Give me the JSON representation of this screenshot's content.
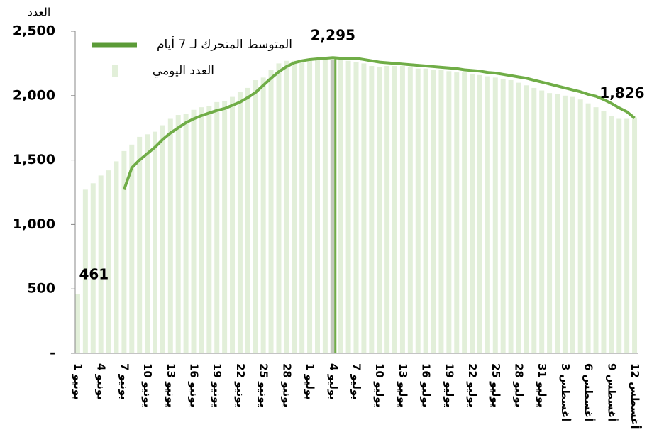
{
  "chart_data": {
    "type": "bar_line",
    "y_axis_label": "العدد",
    "categories": [
      "1 يونيو",
      null,
      null,
      "4 يونيو",
      null,
      null,
      "7 يونيو",
      null,
      null,
      "10 يونيو",
      null,
      null,
      "13 يونيو",
      null,
      null,
      "16 يونيو",
      null,
      null,
      "19 يونيو",
      null,
      null,
      "22 يونيو",
      null,
      null,
      "25 يونيو",
      null,
      null,
      "28 يونيو",
      null,
      null,
      "1 يوليو",
      null,
      null,
      "4 يوليو",
      null,
      null,
      "7 يوليو",
      null,
      null,
      "10 يوليو",
      null,
      null,
      "13 يوليو",
      null,
      null,
      "16 يوليو",
      null,
      null,
      "19 يوليو",
      null,
      null,
      "22 يوليو",
      null,
      null,
      "25 يوليو",
      null,
      null,
      "28 يوليو",
      null,
      null,
      "31 يوليو",
      null,
      null,
      "3 أغسطس",
      null,
      null,
      "6 أغسطس",
      null,
      null,
      "9 أغسطس",
      null,
      null,
      "12 أغسطس"
    ],
    "series": [
      {
        "name": "العدد اليومي",
        "kind": "bar",
        "color": "#e2efd9",
        "values": [
          461,
          1270,
          1320,
          1380,
          1420,
          1490,
          1570,
          1620,
          1680,
          1700,
          1720,
          1770,
          1820,
          1850,
          1860,
          1890,
          1910,
          1920,
          1950,
          1960,
          1990,
          2030,
          2060,
          2120,
          2140,
          2200,
          2250,
          2270,
          2270,
          2280,
          2280,
          2290,
          2290,
          2280,
          2280,
          2270,
          2260,
          2250,
          2230,
          2220,
          2230,
          2230,
          2230,
          2220,
          2210,
          2210,
          2200,
          2200,
          2190,
          2180,
          2180,
          2170,
          2160,
          2150,
          2140,
          2130,
          2120,
          2100,
          2080,
          2060,
          2040,
          2020,
          2010,
          2000,
          1990,
          1970,
          1940,
          1910,
          1880,
          1840,
          1820,
          1820,
          1830
        ],
        "value_labels": [
          "461",
          null,
          null,
          null,
          null,
          null,
          null,
          null,
          null,
          null,
          null,
          null,
          null,
          null,
          null,
          null,
          null,
          null,
          null,
          null,
          null,
          null,
          null,
          null,
          null,
          null,
          null,
          null,
          null,
          null,
          null,
          null,
          null,
          null,
          null,
          null,
          null,
          null,
          null,
          null,
          null,
          null,
          null,
          null,
          null,
          null,
          null,
          null,
          null,
          null,
          null,
          null,
          null,
          null,
          null,
          null,
          null,
          null,
          null,
          null,
          null,
          null,
          null,
          null,
          null,
          null,
          null,
          null,
          null,
          null,
          null,
          null,
          null
        ]
      },
      {
        "name": "المتوسط المتحرك لـ 7 أيام",
        "kind": "line",
        "color": "#70ad47",
        "values": [
          null,
          null,
          null,
          null,
          null,
          null,
          1270,
          1440,
          1500,
          1550,
          1600,
          1660,
          1710,
          1750,
          1790,
          1820,
          1845,
          1865,
          1885,
          1900,
          1925,
          1950,
          1985,
          2025,
          2080,
          2135,
          2185,
          2225,
          2255,
          2270,
          2280,
          2285,
          2290,
          2295,
          2290,
          2290,
          2290,
          2280,
          2270,
          2260,
          2255,
          2250,
          2245,
          2240,
          2235,
          2230,
          2225,
          2220,
          2215,
          2210,
          2200,
          2195,
          2190,
          2180,
          2175,
          2165,
          2155,
          2145,
          2135,
          2120,
          2105,
          2090,
          2075,
          2060,
          2045,
          2030,
          2010,
          1995,
          1970,
          1940,
          1905,
          1875,
          1826
        ],
        "value_labels": [
          null,
          null,
          null,
          null,
          null,
          null,
          null,
          null,
          null,
          null,
          null,
          null,
          null,
          null,
          null,
          null,
          null,
          null,
          null,
          null,
          null,
          null,
          null,
          null,
          null,
          null,
          null,
          null,
          null,
          null,
          null,
          null,
          null,
          "2,295",
          null,
          null,
          null,
          null,
          null,
          null,
          null,
          null,
          null,
          null,
          null,
          null,
          null,
          null,
          null,
          null,
          null,
          null,
          null,
          null,
          null,
          null,
          null,
          null,
          null,
          null,
          null,
          null,
          null,
          null,
          null,
          null,
          null,
          null,
          null,
          null,
          null,
          null,
          "1,826"
        ]
      }
    ],
    "highlight": {
      "index": 33,
      "color": "#70ad47"
    },
    "ylim": [
      0,
      2500
    ],
    "yticks": [
      {
        "value": 0,
        "label": "-"
      },
      500,
      {
        "value": 1000,
        "label": "1,000"
      },
      {
        "value": 1500,
        "label": "1,500"
      },
      {
        "value": 2000,
        "label": "2,000"
      },
      {
        "value": 2500,
        "label": "2,500"
      }
    ],
    "legend": "top-left"
  }
}
